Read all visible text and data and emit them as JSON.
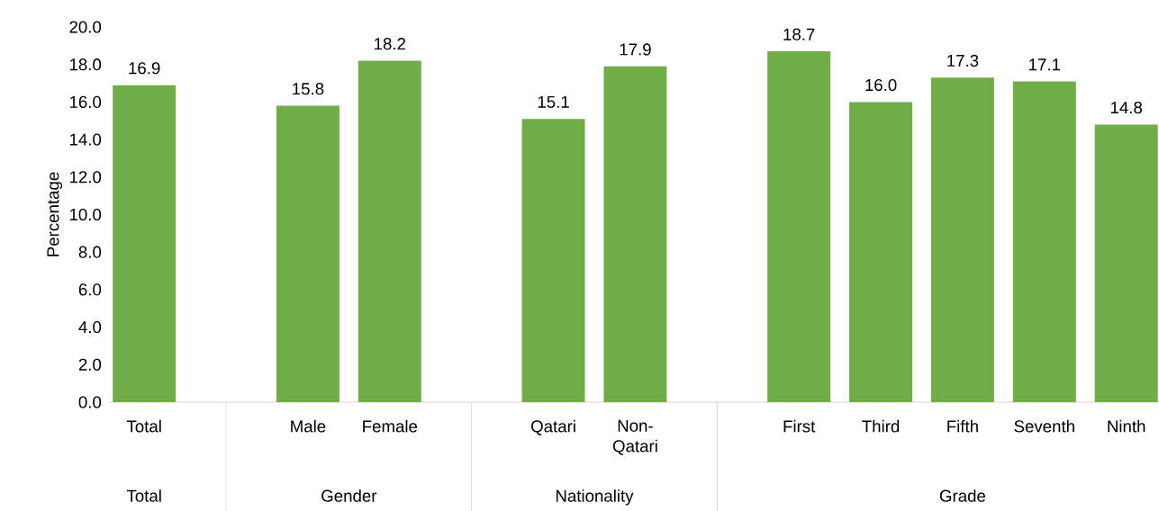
{
  "chart_data": {
    "type": "bar",
    "ylabel": "Percentage",
    "categories": [
      "Total",
      null,
      "Male",
      "Female",
      null,
      "Qatari",
      "Non-Qatari",
      null,
      "First",
      "Third",
      "Fifth",
      "Seventh",
      "Ninth"
    ],
    "values": [
      16.9,
      null,
      15.8,
      18.2,
      null,
      15.1,
      17.9,
      null,
      18.7,
      16.0,
      17.3,
      17.1,
      14.8
    ],
    "value_labels": [
      "16.9",
      null,
      "15.8",
      "18.2",
      null,
      "15.1",
      "17.9",
      null,
      "18.7",
      "16.0",
      "17.3",
      "17.1",
      "14.8"
    ],
    "color": "#70ad47",
    "ylim": [
      0,
      20
    ],
    "yticks": [
      {
        "value": 0,
        "label": "0.0"
      },
      {
        "value": 2,
        "label": "2.0"
      },
      {
        "value": 4,
        "label": "4.0"
      },
      {
        "value": 6,
        "label": "6.0"
      },
      {
        "value": 8,
        "label": "8.0"
      },
      {
        "value": 10,
        "label": "10.0"
      },
      {
        "value": 12,
        "label": "12.0"
      },
      {
        "value": 14,
        "label": "14.0"
      },
      {
        "value": 16,
        "label": "16.0"
      },
      {
        "value": 18,
        "label": "18.0"
      },
      {
        "value": 20,
        "label": "20.0"
      }
    ],
    "annotations": [
      "Total",
      "Gender",
      "Nationality",
      "Grade"
    ]
  }
}
